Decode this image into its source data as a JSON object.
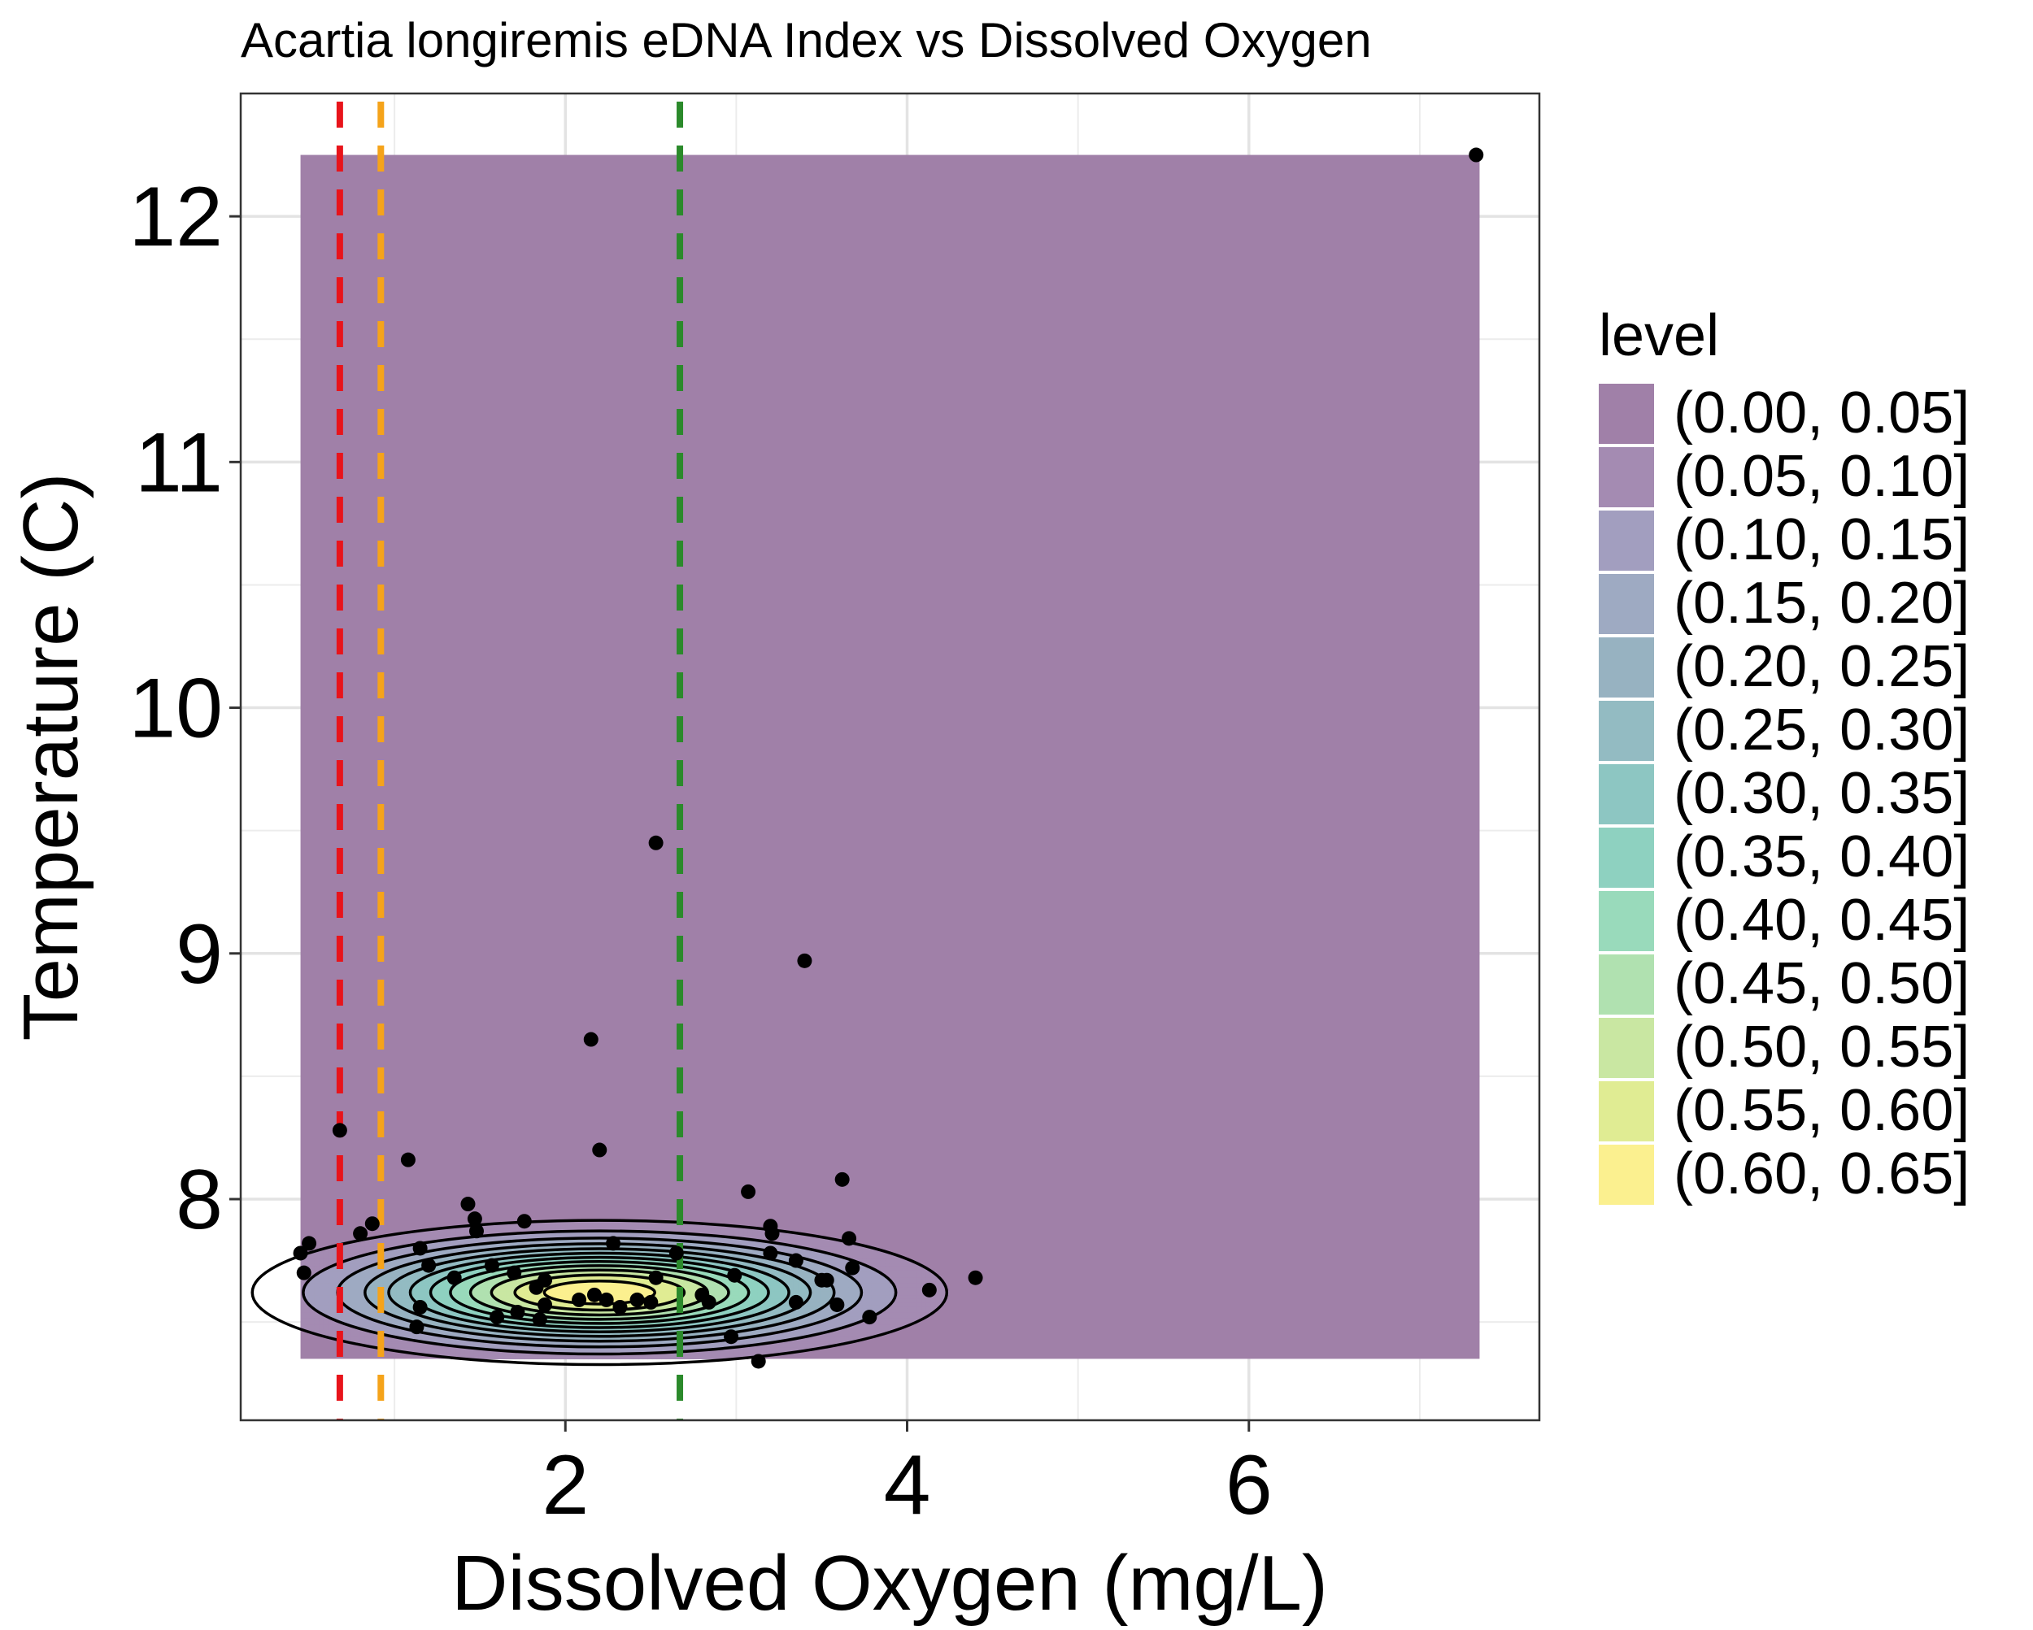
{
  "chart_data": {
    "type": "contour-scatter",
    "title": "Acartia longiremis eDNA Index vs Dissolved Oxygen",
    "xlabel": "Dissolved Oxygen (mg/L)",
    "ylabel": "Temperature (C)",
    "xlim": [
      0.1,
      7.7
    ],
    "ylim": [
      7.1,
      12.5
    ],
    "x_ticks": [
      2,
      4,
      6
    ],
    "x_tick_labels": [
      "2",
      "4",
      "6"
    ],
    "y_ticks": [
      8,
      9,
      10,
      11,
      12
    ],
    "y_tick_labels": [
      "8",
      "9",
      "10",
      "11",
      "12"
    ],
    "grid": true,
    "background_region": {
      "x": [
        0.45,
        7.35
      ],
      "y": [
        7.35,
        12.25
      ],
      "level": "(0.00, 0.05]"
    },
    "density_peak": {
      "x": 2.2,
      "y": 7.62
    },
    "density_spread": {
      "x": 0.9,
      "y": 0.13
    },
    "reference_lines": [
      {
        "x": 0.68,
        "color": "#e8141b"
      },
      {
        "x": 0.92,
        "color": "#f5a31a"
      },
      {
        "x": 2.67,
        "color": "#2b8a2b"
      }
    ],
    "legend": {
      "title": "level",
      "position": "right",
      "entries": [
        {
          "label": "(0.00, 0.05]",
          "color": "#a080a8"
        },
        {
          "label": "(0.05, 0.10]",
          "color": "#a48bb2"
        },
        {
          "label": "(0.10, 0.15]",
          "color": "#a29ebf"
        },
        {
          "label": "(0.15, 0.20]",
          "color": "#9eaac2"
        },
        {
          "label": "(0.20, 0.25]",
          "color": "#97b2c1"
        },
        {
          "label": "(0.25, 0.30]",
          "color": "#93bbc2"
        },
        {
          "label": "(0.30, 0.35]",
          "color": "#8dc6c2"
        },
        {
          "label": "(0.35, 0.40]",
          "color": "#8ed1c0"
        },
        {
          "label": "(0.40, 0.45]",
          "color": "#99dabb"
        },
        {
          "label": "(0.45, 0.50]",
          "color": "#b0e1b0"
        },
        {
          "label": "(0.50, 0.55]",
          "color": "#c9e7a2"
        },
        {
          "label": "(0.55, 0.60]",
          "color": "#e0ec93"
        },
        {
          "label": "(0.60, 0.65]",
          "color": "#fbf08f"
        }
      ]
    },
    "points": [
      [
        7.33,
        12.25
      ],
      [
        2.53,
        9.45
      ],
      [
        3.4,
        8.97
      ],
      [
        2.15,
        8.65
      ],
      [
        0.68,
        8.28
      ],
      [
        2.2,
        8.2
      ],
      [
        1.08,
        8.16
      ],
      [
        3.62,
        8.08
      ],
      [
        3.07,
        8.03
      ],
      [
        1.43,
        7.98
      ],
      [
        1.47,
        7.92
      ],
      [
        0.87,
        7.9
      ],
      [
        1.76,
        7.91
      ],
      [
        3.2,
        7.89
      ],
      [
        1.48,
        7.87
      ],
      [
        0.8,
        7.86
      ],
      [
        3.21,
        7.86
      ],
      [
        3.66,
        7.84
      ],
      [
        2.28,
        7.82
      ],
      [
        0.5,
        7.82
      ],
      [
        1.15,
        7.8
      ],
      [
        2.65,
        7.78
      ],
      [
        3.2,
        7.78
      ],
      [
        0.45,
        7.78
      ],
      [
        3.35,
        7.75
      ],
      [
        1.2,
        7.73
      ],
      [
        1.57,
        7.73
      ],
      [
        3.68,
        7.72
      ],
      [
        1.7,
        7.7
      ],
      [
        2.99,
        7.69
      ],
      [
        0.47,
        7.7
      ],
      [
        1.35,
        7.68
      ],
      [
        2.53,
        7.68
      ],
      [
        4.4,
        7.68
      ],
      [
        3.53,
        7.67
      ],
      [
        3.5,
        7.67
      ],
      [
        1.88,
        7.67
      ],
      [
        1.83,
        7.64
      ],
      [
        4.13,
        7.63
      ],
      [
        2.17,
        7.61
      ],
      [
        2.8,
        7.61
      ],
      [
        2.24,
        7.59
      ],
      [
        2.42,
        7.59
      ],
      [
        2.08,
        7.59
      ],
      [
        2.5,
        7.58
      ],
      [
        2.84,
        7.58
      ],
      [
        1.88,
        7.57
      ],
      [
        3.35,
        7.58
      ],
      [
        3.59,
        7.57
      ],
      [
        1.15,
        7.56
      ],
      [
        2.32,
        7.56
      ],
      [
        1.72,
        7.54
      ],
      [
        3.78,
        7.52
      ],
      [
        1.6,
        7.52
      ],
      [
        1.85,
        7.51
      ],
      [
        1.13,
        7.48
      ],
      [
        2.97,
        7.44
      ],
      [
        3.13,
        7.34
      ]
    ]
  }
}
